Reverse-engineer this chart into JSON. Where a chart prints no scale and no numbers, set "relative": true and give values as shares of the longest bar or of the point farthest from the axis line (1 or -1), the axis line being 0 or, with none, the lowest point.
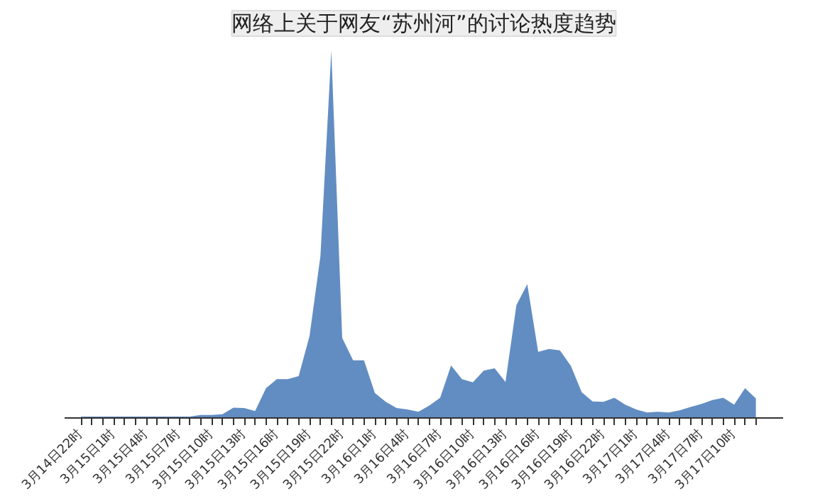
{
  "chart_data": {
    "type": "area",
    "title": "网络上关于网友“苏州河”的讨论热度趋势",
    "relative": true,
    "color": "#5a87bf",
    "grid": false,
    "categories": [
      "3月14日22时",
      null,
      null,
      "3月15日1时",
      null,
      null,
      "3月15日4时",
      null,
      null,
      "3月15日7时",
      null,
      null,
      "3月15日10时",
      null,
      null,
      "3月15日13时",
      null,
      null,
      "3月15日16时",
      null,
      null,
      "3月15日19时",
      null,
      null,
      "3月15日22时",
      null,
      null,
      "3月16日1时",
      null,
      null,
      "3月16日4时",
      null,
      null,
      "3月16日7时",
      null,
      null,
      "3月16日10时",
      null,
      null,
      "3月16日13时",
      null,
      null,
      "3月16日16时",
      null,
      null,
      "3月16日19时",
      null,
      null,
      "3月16日22时",
      null,
      null,
      "3月17日1时",
      null,
      null,
      "3月17日4时",
      null,
      null,
      "3月17日7时",
      null,
      null,
      "3月17日10时",
      null,
      null
    ],
    "values": [
      0.004,
      0.004,
      0.004,
      0.004,
      0.004,
      0.004,
      0.004,
      0.004,
      0.004,
      0.004,
      0.004,
      0.008,
      0.008,
      0.01,
      0.028,
      0.027,
      0.019,
      0.081,
      0.106,
      0.106,
      0.114,
      0.223,
      0.441,
      1,
      0.218,
      0.157,
      0.157,
      0.068,
      0.044,
      0.027,
      0.023,
      0.017,
      0.034,
      0.055,
      0.143,
      0.106,
      0.097,
      0.129,
      0.135,
      0.098,
      0.307,
      0.364,
      0.18,
      0.188,
      0.184,
      0.142,
      0.07,
      0.045,
      0.044,
      0.055,
      0.036,
      0.023,
      0.015,
      0.017,
      0.015,
      0.021,
      0.03,
      0.038,
      0.049,
      0.055,
      0.036,
      0.081,
      0.053
    ]
  }
}
